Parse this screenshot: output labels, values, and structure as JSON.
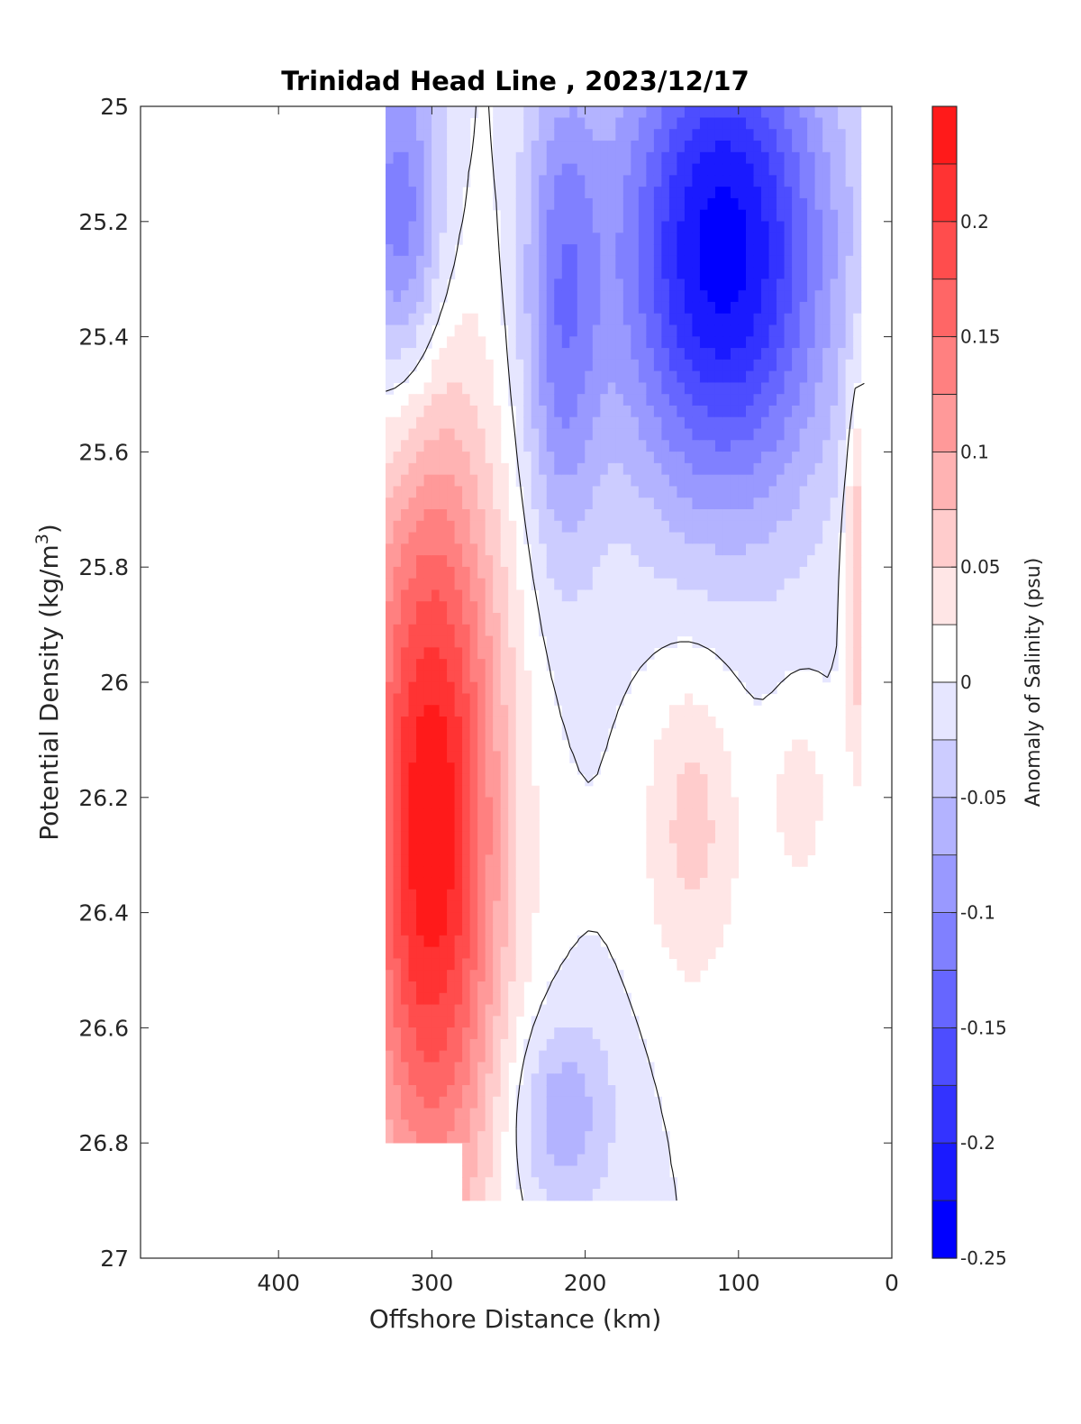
{
  "chart_data": {
    "type": "contour",
    "title": "Trinidad Head Line , 2023/12/17",
    "xlabel": "Offshore Distance (km)",
    "ylabel": {
      "main": "Potential Density (kg/m",
      "sup": "3",
      "tail": ")"
    },
    "xlim": [
      490,
      0
    ],
    "ylim": [
      25,
      27
    ],
    "y_reversed": true,
    "x_ticks": [
      "400",
      "300",
      "200",
      "100",
      "0"
    ],
    "x_tick_values": [
      400,
      300,
      200,
      100,
      0
    ],
    "y_ticks": [
      "25",
      "25.2",
      "25.4",
      "25.6",
      "25.8",
      "26",
      "26.2",
      "26.4",
      "26.6",
      "26.8",
      "27"
    ],
    "y_tick_values": [
      25,
      25.2,
      25.4,
      25.6,
      25.8,
      26,
      26.2,
      26.4,
      26.6,
      26.8,
      27
    ],
    "colorbar": {
      "label": "Anomaly of Salinity (psu)",
      "range": [
        -0.25,
        0.25
      ],
      "tick_labels": [
        "0.2",
        "0.15",
        "0.1",
        "0.05",
        "0",
        "-0.05",
        "-0.1",
        "-0.15",
        "-0.2",
        "-0.25"
      ],
      "tick_values": [
        0.2,
        0.15,
        0.1,
        0.05,
        0,
        -0.05,
        -0.1,
        -0.15,
        -0.2,
        -0.25
      ],
      "colors": [
        "#0000ff",
        "#1a1aff",
        "#3333ff",
        "#4d4dff",
        "#6666ff",
        "#8080ff",
        "#9999ff",
        "#b3b3ff",
        "#ccccff",
        "#e6e6ff",
        "#ffffff",
        "#ffe6e6",
        "#ffcccc",
        "#ffb3b3",
        "#ff9999",
        "#ff8080",
        "#ff6666",
        "#ff4d4d",
        "#ff3333",
        "#ff1a1a"
      ]
    },
    "features": [
      {
        "name": "offshore-salty-core",
        "x": 300,
        "y": 26.25,
        "value": 0.25
      },
      {
        "name": "nearshore-fresh-core",
        "x": 110,
        "y": 25.25,
        "value": -0.24
      },
      {
        "name": "offshore-fresh-lobe",
        "x": 320,
        "y": 25.2,
        "value": -0.13
      },
      {
        "name": "mid-fresh-lobe",
        "x": 215,
        "y": 25.35,
        "value": -0.11
      },
      {
        "name": "mid-salty-patch",
        "x": 130,
        "y": 26.25,
        "value": 0.06
      },
      {
        "name": "coastal-salty-strip",
        "x": 22,
        "y": 25.8,
        "value": 0.08
      },
      {
        "name": "coastal-salty-patch",
        "x": 60,
        "y": 26.2,
        "value": 0.04
      },
      {
        "name": "deep-fresh-patch",
        "x": 215,
        "y": 26.75,
        "value": -0.07
      }
    ]
  }
}
